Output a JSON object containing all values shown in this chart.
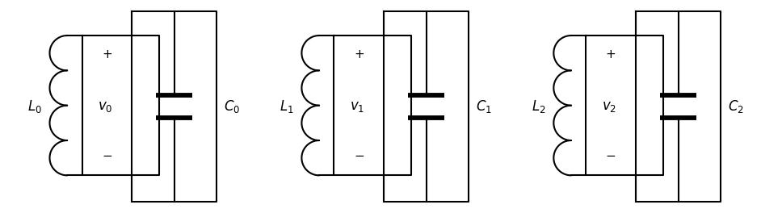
{
  "circuits": [
    {
      "L_label": "$L_0$",
      "v_label": "$v_0$",
      "C_label": "$C_0$"
    },
    {
      "L_label": "$L_1$",
      "v_label": "$v_1$",
      "C_label": "$C_1$"
    },
    {
      "L_label": "$L_2$",
      "v_label": "$v_2$",
      "C_label": "$C_2$"
    }
  ],
  "bg_color": "#ffffff",
  "line_color": "#000000",
  "line_width": 1.5,
  "font_size": 12,
  "fig_width": 9.42,
  "fig_height": 2.64,
  "dpi": 100
}
